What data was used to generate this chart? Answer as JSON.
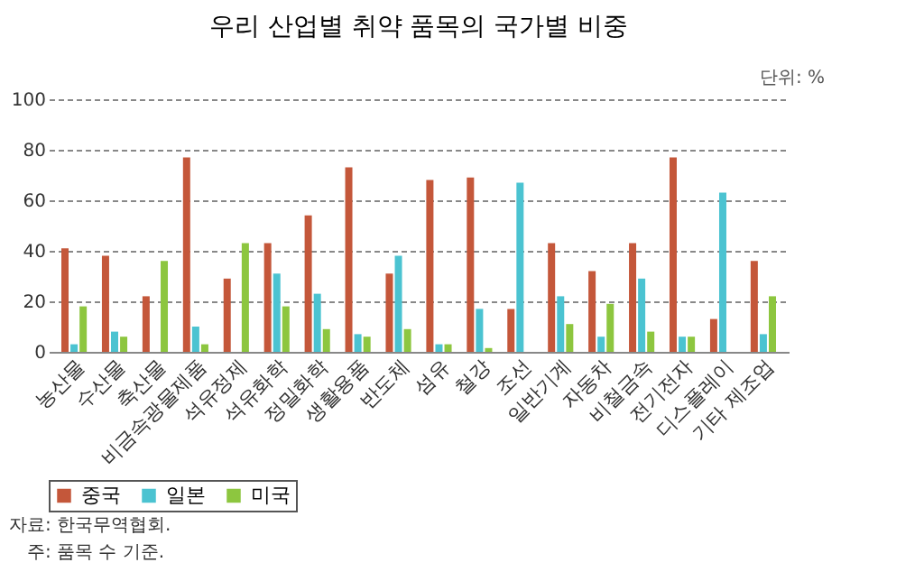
{
  "chart_data": {
    "type": "bar",
    "title": "우리 산업별 취약 품목의 국가별 비중",
    "categories": [
      "농산물",
      "수산물",
      "축산물",
      "비금속광물제품",
      "석유정제",
      "석유화학",
      "정밀화학",
      "생활용품",
      "반도체",
      "섬유",
      "철강",
      "조선",
      "일반기계",
      "자동차",
      "비철금속",
      "전기전자",
      "디스플레이",
      "기타 제조업"
    ],
    "series": [
      {
        "name": "중국",
        "color": "#c4573a",
        "values": [
          41,
          38,
          22,
          77,
          29,
          43,
          54,
          73,
          31,
          68,
          69,
          17,
          43,
          32,
          43,
          77,
          13,
          36
        ]
      },
      {
        "name": "일본",
        "color": "#4bc3d1",
        "values": [
          3,
          8,
          0,
          10,
          0,
          31,
          23,
          7,
          38,
          3,
          17,
          67,
          22,
          6,
          29,
          6,
          63,
          7
        ]
      },
      {
        "name": "미국",
        "color": "#8dc63f",
        "values": [
          18,
          6,
          36,
          3,
          43,
          18,
          9,
          6,
          9,
          3,
          1.5,
          0,
          11,
          19,
          8,
          6,
          0,
          22
        ]
      }
    ],
    "ylim": [
      0,
      100
    ],
    "yticks": [
      0,
      20,
      40,
      60,
      80,
      100
    ],
    "grid": "y",
    "legend": "bottom",
    "annotations": [
      "단위: %",
      "자료: 한국무역협회.",
      "주: 품목 수 기준."
    ]
  }
}
